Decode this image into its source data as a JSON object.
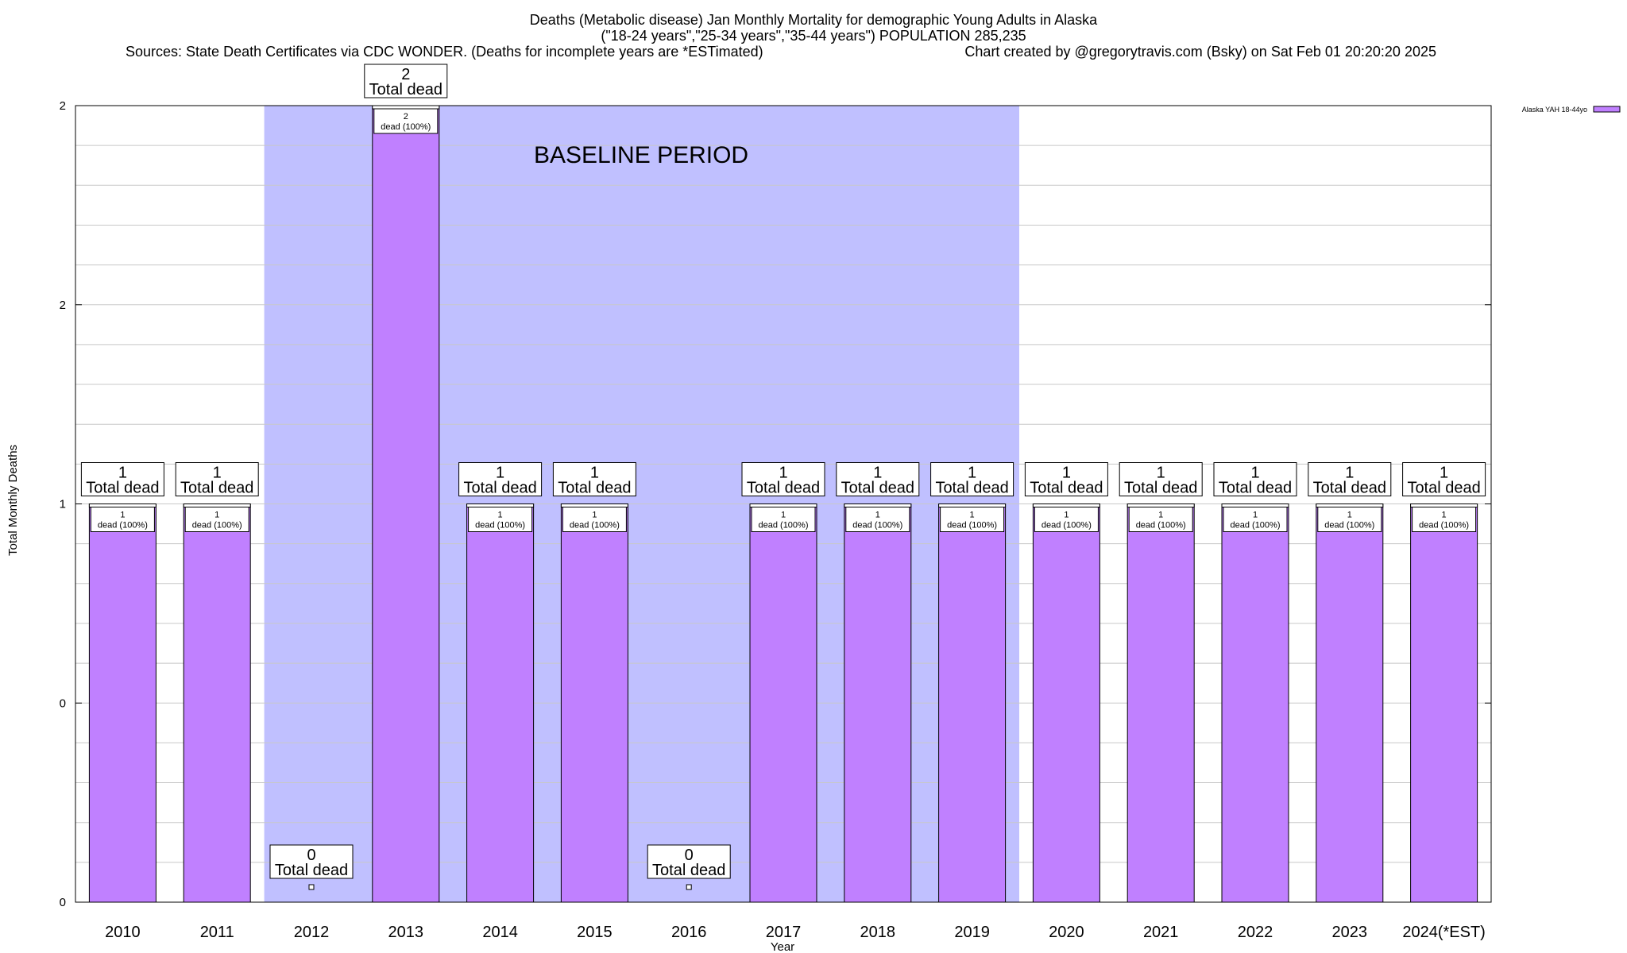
{
  "chart_data": {
    "type": "bar",
    "title_lines": [
      "Deaths (Metabolic disease) Jan Monthly Mortality for demographic Young Adults in Alaska",
      "(\"18-24 years\",\"25-34 years\",\"35-44 years\") POPULATION 285,235"
    ],
    "sources": "Sources: State Death Certificates via CDC WONDER. (Deaths for incomplete years are *ESTimated)",
    "credit": "Chart created by @gregorytravis.com (Bsky) on Sat Feb 01 20:20:20 2025",
    "xlabel": "Year",
    "ylabel": "Total Monthly Deaths",
    "ylim": [
      0,
      2
    ],
    "ytick_labels": [
      "0",
      "0",
      "1",
      "2",
      "2"
    ],
    "grid": true,
    "legend": {
      "label": "Alaska YAH 18-44yo",
      "position": "top-right"
    },
    "baseline_label": "BASELINE PERIOD",
    "baseline_range": [
      "2012",
      "2019"
    ],
    "categories": [
      "2010",
      "2011",
      "2012",
      "2013",
      "2014",
      "2015",
      "2016",
      "2017",
      "2018",
      "2019",
      "2020",
      "2021",
      "2022",
      "2023",
      "2024(*EST)"
    ],
    "values": [
      1,
      1,
      0,
      2,
      1,
      1,
      0,
      1,
      1,
      1,
      1,
      1,
      1,
      1,
      1
    ],
    "total_label": "Total dead",
    "inner_label": "dead (100%)",
    "colors": {
      "bar": "#c080ff",
      "baseline": "#c0c0ff",
      "grid": "#c8c8c8"
    }
  }
}
